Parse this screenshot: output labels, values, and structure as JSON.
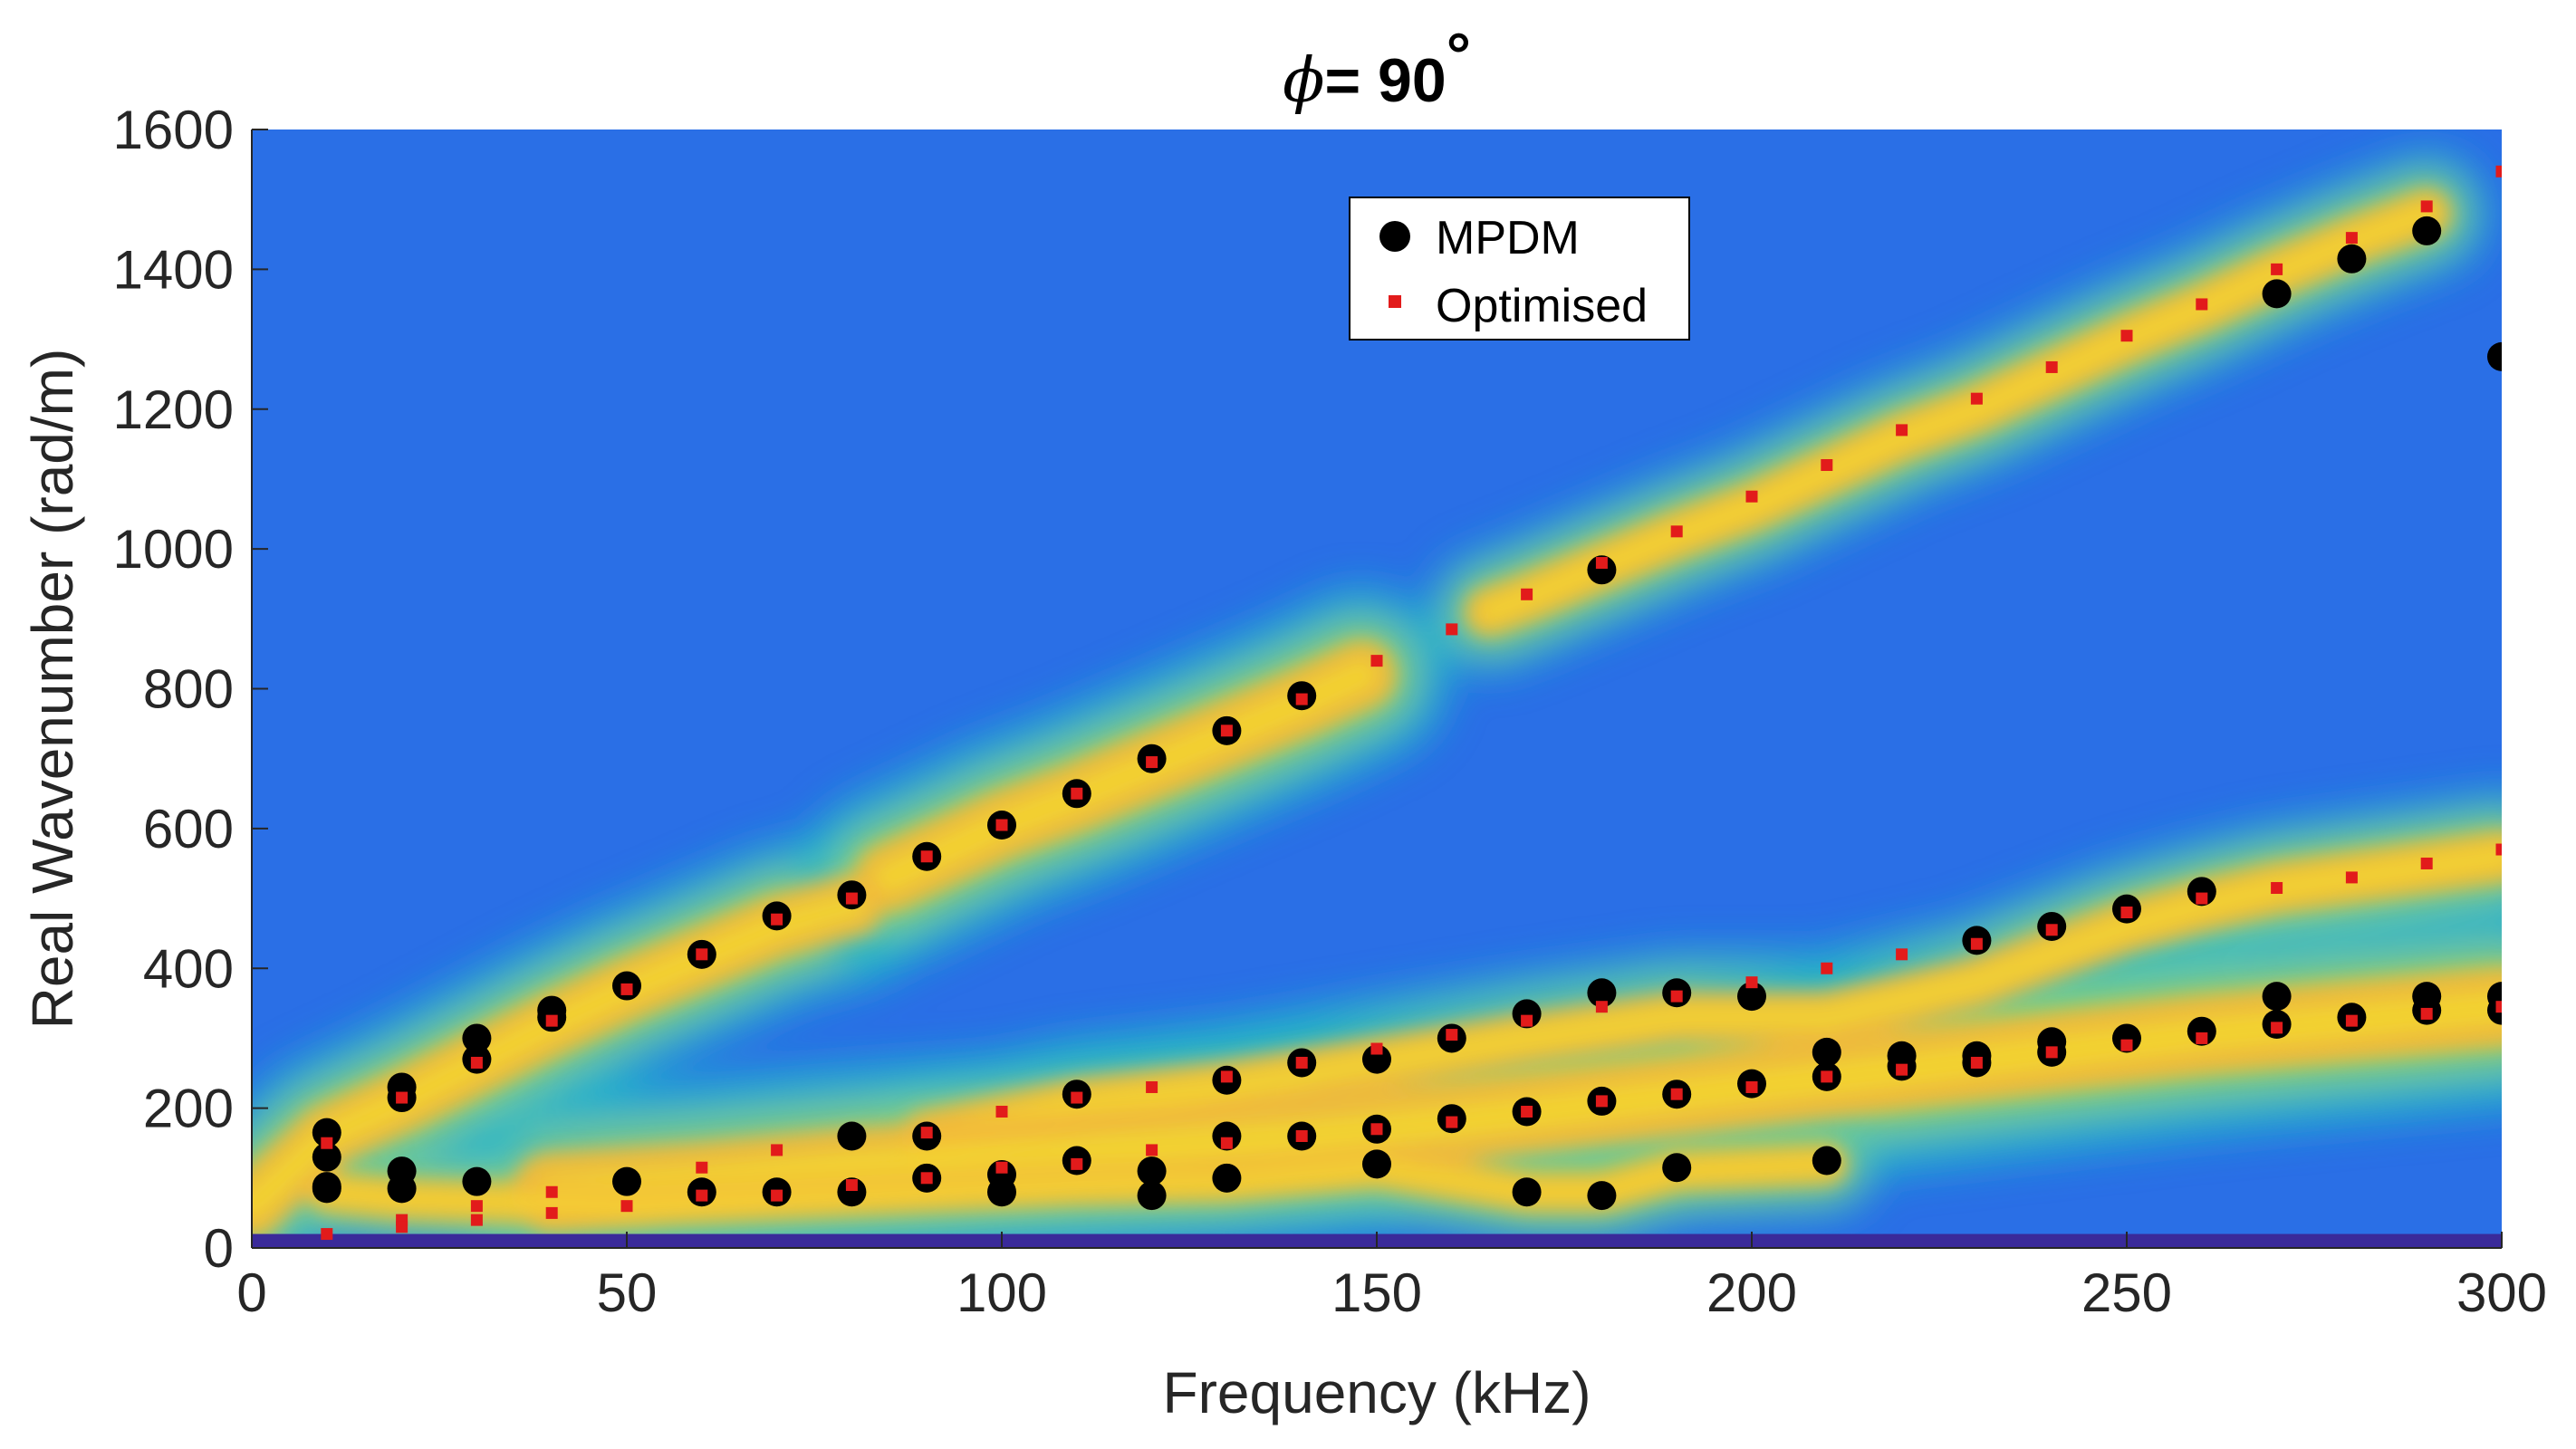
{
  "chart_data": {
    "type": "scatter",
    "background": "heatmap",
    "title": "= 90",
    "title_symbol": "ϕ",
    "title_degree": "°",
    "xlabel": "Frequency (kHz)",
    "ylabel": "Real Wavenumber (rad/m)",
    "xlim": [
      0,
      300
    ],
    "ylim": [
      0,
      1600
    ],
    "xticks": [
      0,
      50,
      100,
      150,
      200,
      250,
      300
    ],
    "yticks": [
      0,
      200,
      400,
      600,
      800,
      1000,
      1200,
      1400,
      1600
    ],
    "legend": {
      "position": "top-center",
      "entries": [
        "MPDM",
        "Optimised"
      ]
    },
    "colors": {
      "mpdm": "#000000",
      "optimised": "#e21b1b",
      "heatmap_low": "#2a6fe6",
      "heatmap_mid": "#1fb8c8",
      "heatmap_high": "#f5e52a",
      "baseline": "#3a2a9a"
    },
    "ridges": [
      {
        "points": [
          [
            0,
            60
          ],
          [
            10,
            160
          ],
          [
            20,
            210
          ],
          [
            30,
            265
          ],
          [
            40,
            320
          ],
          [
            50,
            370
          ],
          [
            60,
            415
          ],
          [
            70,
            460
          ],
          [
            80,
            490
          ]
        ],
        "width": 55
      },
      {
        "points": [
          [
            85,
            530
          ],
          [
            90,
            555
          ],
          [
            100,
            605
          ],
          [
            110,
            645
          ],
          [
            120,
            690
          ],
          [
            130,
            735
          ],
          [
            140,
            780
          ],
          [
            148,
            820
          ]
        ],
        "width": 60
      },
      {
        "points": [
          [
            165,
            910
          ],
          [
            170,
            930
          ],
          [
            180,
            975
          ],
          [
            190,
            1020
          ],
          [
            200,
            1060
          ],
          [
            210,
            1110
          ],
          [
            220,
            1160
          ],
          [
            230,
            1200
          ],
          [
            240,
            1250
          ],
          [
            250,
            1300
          ],
          [
            260,
            1345
          ],
          [
            270,
            1395
          ],
          [
            280,
            1440
          ],
          [
            290,
            1480
          ]
        ],
        "width": 42
      },
      {
        "points": [
          [
            90,
            160
          ],
          [
            110,
            205
          ],
          [
            130,
            230
          ],
          [
            150,
            265
          ],
          [
            170,
            300
          ],
          [
            190,
            330
          ],
          [
            210,
            330
          ],
          [
            230,
            380
          ],
          [
            240,
            420
          ],
          [
            250,
            460
          ],
          [
            260,
            490
          ],
          [
            270,
            515
          ],
          [
            280,
            530
          ],
          [
            300,
            560
          ]
        ],
        "width": 45
      },
      {
        "points": [
          [
            40,
            80
          ],
          [
            60,
            95
          ],
          [
            80,
            115
          ],
          [
            100,
            130
          ],
          [
            120,
            145
          ],
          [
            140,
            160
          ],
          [
            160,
            180
          ],
          [
            180,
            205
          ],
          [
            200,
            230
          ],
          [
            220,
            255
          ],
          [
            240,
            280
          ],
          [
            260,
            305
          ],
          [
            280,
            325
          ],
          [
            300,
            345
          ]
        ],
        "width": 70
      },
      {
        "points": [
          [
            10,
            80
          ],
          [
            20,
            70
          ],
          [
            50,
            60
          ],
          [
            80,
            75
          ],
          [
            110,
            90
          ],
          [
            130,
            95
          ],
          [
            150,
            115
          ],
          [
            170,
            80
          ],
          [
            180,
            80
          ],
          [
            190,
            110
          ],
          [
            210,
            120
          ]
        ],
        "width": 35
      }
    ],
    "series": [
      {
        "name": "MPDM",
        "marker": "circle",
        "points": [
          [
            10,
            165
          ],
          [
            10,
            130
          ],
          [
            10,
            88
          ],
          [
            10,
            85
          ],
          [
            20,
            230
          ],
          [
            20,
            215
          ],
          [
            20,
            110
          ],
          [
            20,
            85
          ],
          [
            30,
            300
          ],
          [
            30,
            270
          ],
          [
            30,
            95
          ],
          [
            40,
            340
          ],
          [
            40,
            330
          ],
          [
            50,
            375
          ],
          [
            50,
            95
          ],
          [
            60,
            420
          ],
          [
            60,
            80
          ],
          [
            70,
            475
          ],
          [
            70,
            80
          ],
          [
            80,
            505
          ],
          [
            80,
            160
          ],
          [
            80,
            80
          ],
          [
            90,
            560
          ],
          [
            90,
            160
          ],
          [
            90,
            100
          ],
          [
            100,
            605
          ],
          [
            100,
            105
          ],
          [
            100,
            80
          ],
          [
            110,
            650
          ],
          [
            110,
            220
          ],
          [
            110,
            125
          ],
          [
            120,
            700
          ],
          [
            120,
            110
          ],
          [
            120,
            75
          ],
          [
            130,
            740
          ],
          [
            130,
            240
          ],
          [
            130,
            160
          ],
          [
            130,
            100
          ],
          [
            140,
            790
          ],
          [
            140,
            265
          ],
          [
            140,
            160
          ],
          [
            150,
            270
          ],
          [
            150,
            170
          ],
          [
            150,
            120
          ],
          [
            160,
            300
          ],
          [
            160,
            185
          ],
          [
            170,
            335
          ],
          [
            170,
            195
          ],
          [
            170,
            80
          ],
          [
            180,
            970
          ],
          [
            180,
            365
          ],
          [
            180,
            210
          ],
          [
            180,
            75
          ],
          [
            190,
            365
          ],
          [
            190,
            220
          ],
          [
            190,
            115
          ],
          [
            200,
            360
          ],
          [
            200,
            235
          ],
          [
            210,
            280
          ],
          [
            210,
            245
          ],
          [
            210,
            125
          ],
          [
            220,
            275
          ],
          [
            220,
            260
          ],
          [
            230,
            440
          ],
          [
            230,
            275
          ],
          [
            230,
            265
          ],
          [
            240,
            460
          ],
          [
            240,
            295
          ],
          [
            240,
            280
          ],
          [
            250,
            485
          ],
          [
            250,
            300
          ],
          [
            260,
            510
          ],
          [
            260,
            310
          ],
          [
            270,
            1365
          ],
          [
            270,
            360
          ],
          [
            270,
            320
          ],
          [
            280,
            1415
          ],
          [
            280,
            330
          ],
          [
            290,
            1455
          ],
          [
            290,
            360
          ],
          [
            290,
            340
          ],
          [
            300,
            1275
          ],
          [
            300,
            360
          ],
          [
            300,
            340
          ]
        ]
      },
      {
        "name": "Optimised",
        "marker": "square",
        "points": [
          [
            10,
            150
          ],
          [
            10,
            20
          ],
          [
            20,
            215
          ],
          [
            20,
            40
          ],
          [
            20,
            30
          ],
          [
            30,
            265
          ],
          [
            30,
            60
          ],
          [
            30,
            40
          ],
          [
            40,
            325
          ],
          [
            40,
            80
          ],
          [
            40,
            50
          ],
          [
            50,
            370
          ],
          [
            50,
            60
          ],
          [
            60,
            420
          ],
          [
            60,
            115
          ],
          [
            60,
            75
          ],
          [
            70,
            470
          ],
          [
            70,
            140
          ],
          [
            70,
            75
          ],
          [
            80,
            500
          ],
          [
            80,
            90
          ],
          [
            90,
            560
          ],
          [
            90,
            165
          ],
          [
            90,
            100
          ],
          [
            100,
            605
          ],
          [
            100,
            195
          ],
          [
            100,
            115
          ],
          [
            110,
            650
          ],
          [
            110,
            215
          ],
          [
            110,
            120
          ],
          [
            120,
            695
          ],
          [
            120,
            230
          ],
          [
            120,
            140
          ],
          [
            130,
            740
          ],
          [
            130,
            245
          ],
          [
            130,
            150
          ],
          [
            140,
            785
          ],
          [
            140,
            265
          ],
          [
            140,
            160
          ],
          [
            150,
            840
          ],
          [
            150,
            285
          ],
          [
            150,
            170
          ],
          [
            160,
            885
          ],
          [
            160,
            305
          ],
          [
            160,
            180
          ],
          [
            170,
            935
          ],
          [
            170,
            325
          ],
          [
            170,
            195
          ],
          [
            180,
            980
          ],
          [
            180,
            345
          ],
          [
            180,
            210
          ],
          [
            190,
            1025
          ],
          [
            190,
            360
          ],
          [
            190,
            220
          ],
          [
            200,
            1075
          ],
          [
            200,
            380
          ],
          [
            200,
            230
          ],
          [
            210,
            1120
          ],
          [
            210,
            400
          ],
          [
            210,
            245
          ],
          [
            220,
            1170
          ],
          [
            220,
            420
          ],
          [
            220,
            255
          ],
          [
            230,
            1215
          ],
          [
            230,
            435
          ],
          [
            230,
            265
          ],
          [
            240,
            1260
          ],
          [
            240,
            455
          ],
          [
            240,
            280
          ],
          [
            250,
            1305
          ],
          [
            250,
            480
          ],
          [
            250,
            290
          ],
          [
            260,
            1350
          ],
          [
            260,
            500
          ],
          [
            260,
            300
          ],
          [
            270,
            1400
          ],
          [
            270,
            515
          ],
          [
            270,
            315
          ],
          [
            280,
            1445
          ],
          [
            280,
            530
          ],
          [
            280,
            325
          ],
          [
            290,
            1490
          ],
          [
            290,
            550
          ],
          [
            290,
            335
          ],
          [
            300,
            1540
          ],
          [
            300,
            570
          ],
          [
            300,
            345
          ]
        ]
      }
    ]
  }
}
